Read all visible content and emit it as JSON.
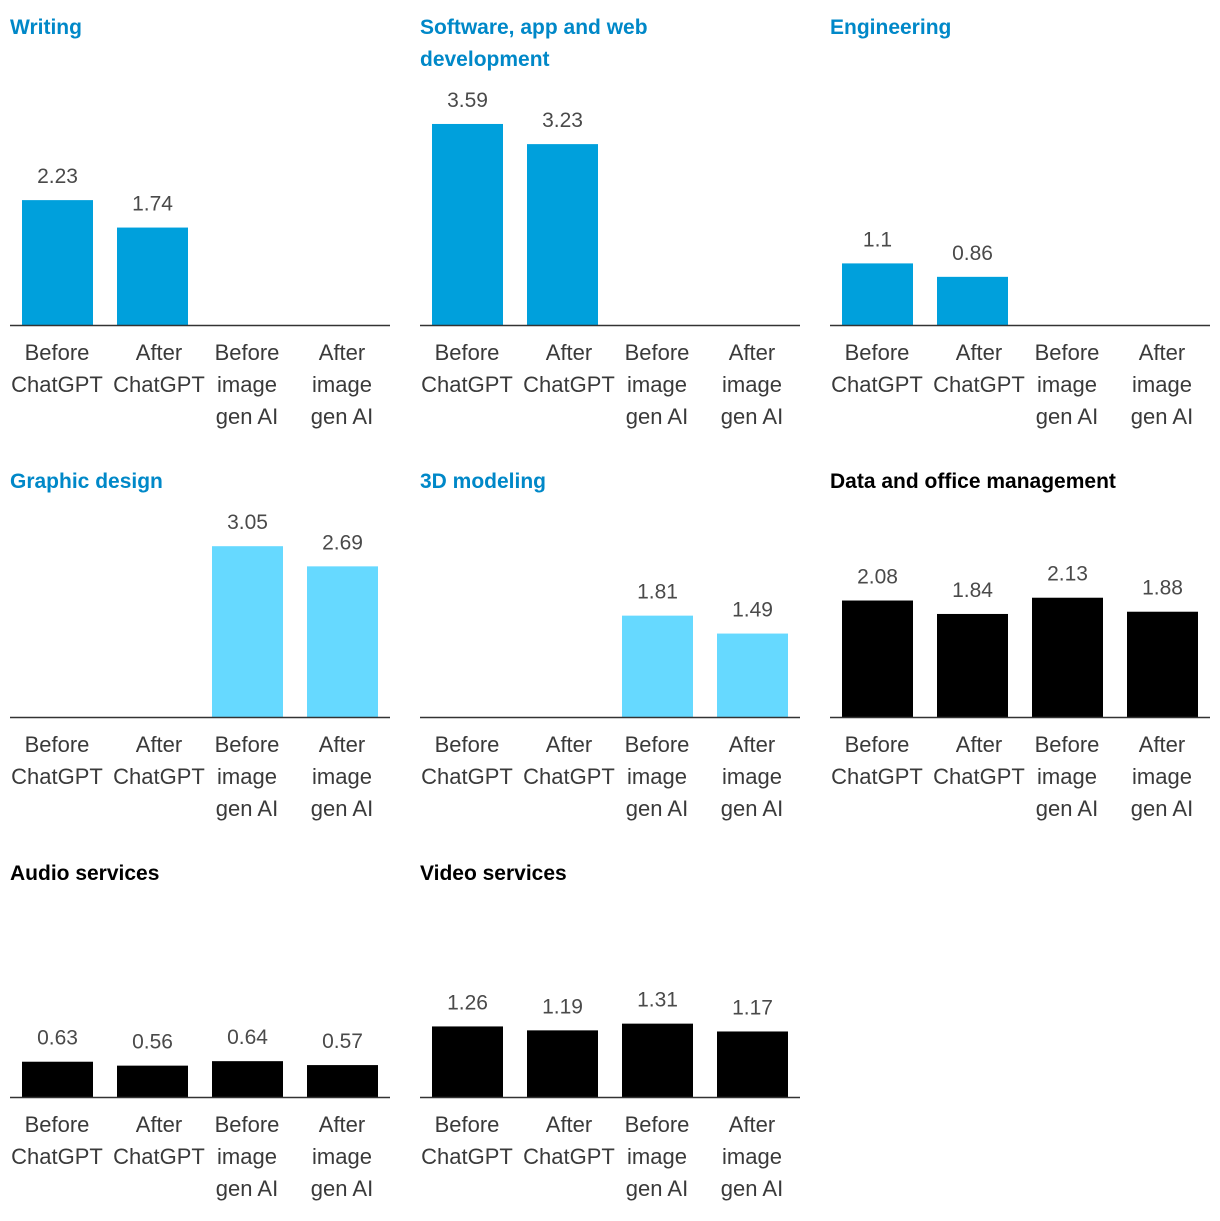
{
  "categories": [
    [
      "Before",
      "ChatGPT"
    ],
    [
      "After",
      "ChatGPT"
    ],
    [
      "Before",
      "image",
      "gen AI"
    ],
    [
      "After",
      "image",
      "gen AI"
    ]
  ],
  "colors": {
    "blue_title": "#0088c8",
    "blue_bar": "#00a0dc",
    "light_bar": "#66d9ff",
    "black": "#000000"
  },
  "chart_data": [
    {
      "type": "bar",
      "title": "Writing",
      "title_color": "#0088c8",
      "bar_color": "#00a0dc",
      "values": [
        2.23,
        1.74,
        null,
        null
      ],
      "labels": [
        "2.23",
        "1.74",
        "",
        ""
      ]
    },
    {
      "type": "bar",
      "title": "Software, app and web development",
      "title_color": "#0088c8",
      "bar_color": "#00a0dc",
      "values": [
        3.59,
        3.23,
        null,
        null
      ],
      "labels": [
        "3.59",
        "3.23",
        "",
        ""
      ]
    },
    {
      "type": "bar",
      "title": "Engineering",
      "title_color": "#0088c8",
      "bar_color": "#00a0dc",
      "values": [
        1.1,
        0.86,
        null,
        null
      ],
      "labels": [
        "1.1",
        "0.86",
        "",
        ""
      ]
    },
    {
      "type": "bar",
      "title": "Graphic design",
      "title_color": "#0088c8",
      "bar_color": "#66d9ff",
      "values": [
        null,
        null,
        3.05,
        2.69
      ],
      "labels": [
        "",
        "",
        "3.05",
        "2.69"
      ]
    },
    {
      "type": "bar",
      "title": "3D modeling",
      "title_color": "#0088c8",
      "bar_color": "#66d9ff",
      "values": [
        null,
        null,
        1.81,
        1.49
      ],
      "labels": [
        "",
        "",
        "1.81",
        "1.49"
      ]
    },
    {
      "type": "bar",
      "title": "Data and office management",
      "title_color": "#000000",
      "bar_color": "#000000",
      "values": [
        2.08,
        1.84,
        2.13,
        1.88
      ],
      "labels": [
        "2.08",
        "1.84",
        "2.13",
        "1.88"
      ]
    },
    {
      "type": "bar",
      "title": "Audio services",
      "title_color": "#000000",
      "bar_color": "#000000",
      "values": [
        0.63,
        0.56,
        0.64,
        0.57
      ],
      "labels": [
        "0.63",
        "0.56",
        "0.64",
        "0.57"
      ]
    },
    {
      "type": "bar",
      "title": "Video services",
      "title_color": "#000000",
      "bar_color": "#000000",
      "values": [
        1.26,
        1.19,
        1.31,
        1.17
      ],
      "labels": [
        "1.26",
        "1.19",
        "1.31",
        "1.17"
      ]
    }
  ]
}
